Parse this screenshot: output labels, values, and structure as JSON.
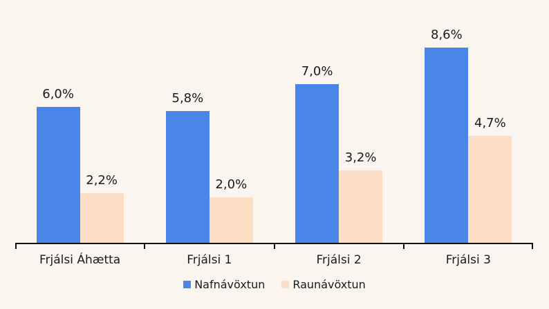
{
  "background_color": "#faf5ef",
  "axis_color": "#111111",
  "chart_data": {
    "type": "bar",
    "title": "",
    "xlabel": "",
    "ylabel": "",
    "grid": false,
    "legend_position": "bottom",
    "ylim": [
      0,
      10
    ],
    "categories": [
      "Frjálsi Áhætta",
      "Frjálsi 1",
      "Frjálsi 2",
      "Frjálsi 3"
    ],
    "series": [
      {
        "name": "Nafnávöxtun",
        "color": "#4a86e8",
        "values": [
          6.0,
          5.8,
          7.0,
          8.6
        ],
        "labels": [
          "6,0%",
          "5,8%",
          "7,0%",
          "8,6%"
        ]
      },
      {
        "name": "Raunávöxtun",
        "color": "#fcdec4",
        "values": [
          2.2,
          2.0,
          3.2,
          4.7
        ],
        "labels": [
          "2,2%",
          "2,0%",
          "3,2%",
          "4,7%"
        ]
      }
    ]
  }
}
